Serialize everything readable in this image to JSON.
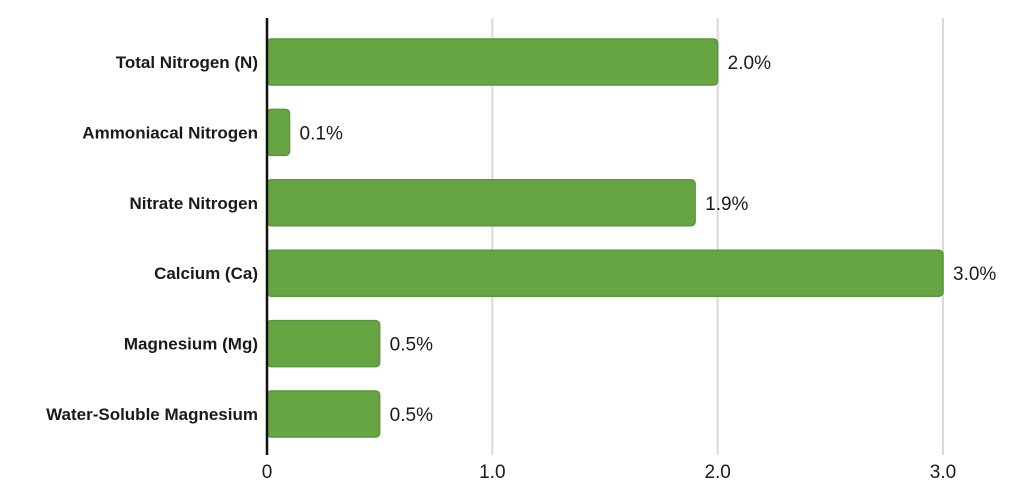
{
  "chart_data": {
    "type": "bar",
    "orientation": "horizontal",
    "categories": [
      "Total Nitrogen (N)",
      "Ammoniacal Nitrogen",
      "Nitrate Nitrogen",
      "Calcium (Ca)",
      "Magnesium (Mg)",
      "Water-Soluble Magnesium"
    ],
    "values": [
      2.0,
      0.1,
      1.9,
      3.0,
      0.5,
      0.5
    ],
    "data_labels": [
      "2.0%",
      "0.1%",
      "1.9%",
      "3.0%",
      "0.5%",
      "0.5%"
    ],
    "x_ticks": [
      0,
      1.0,
      2.0,
      3.0
    ],
    "x_tick_labels": [
      "0",
      "1.0",
      "2.0",
      "3.0"
    ],
    "xlim": [
      0,
      3.0
    ],
    "grid": "vertical",
    "title": "",
    "xlabel": "",
    "ylabel": "",
    "colors": {
      "bar": "#67a543",
      "bar_border": "#5b9638",
      "grid": "#d9d9d9",
      "axis": "#111111"
    }
  }
}
